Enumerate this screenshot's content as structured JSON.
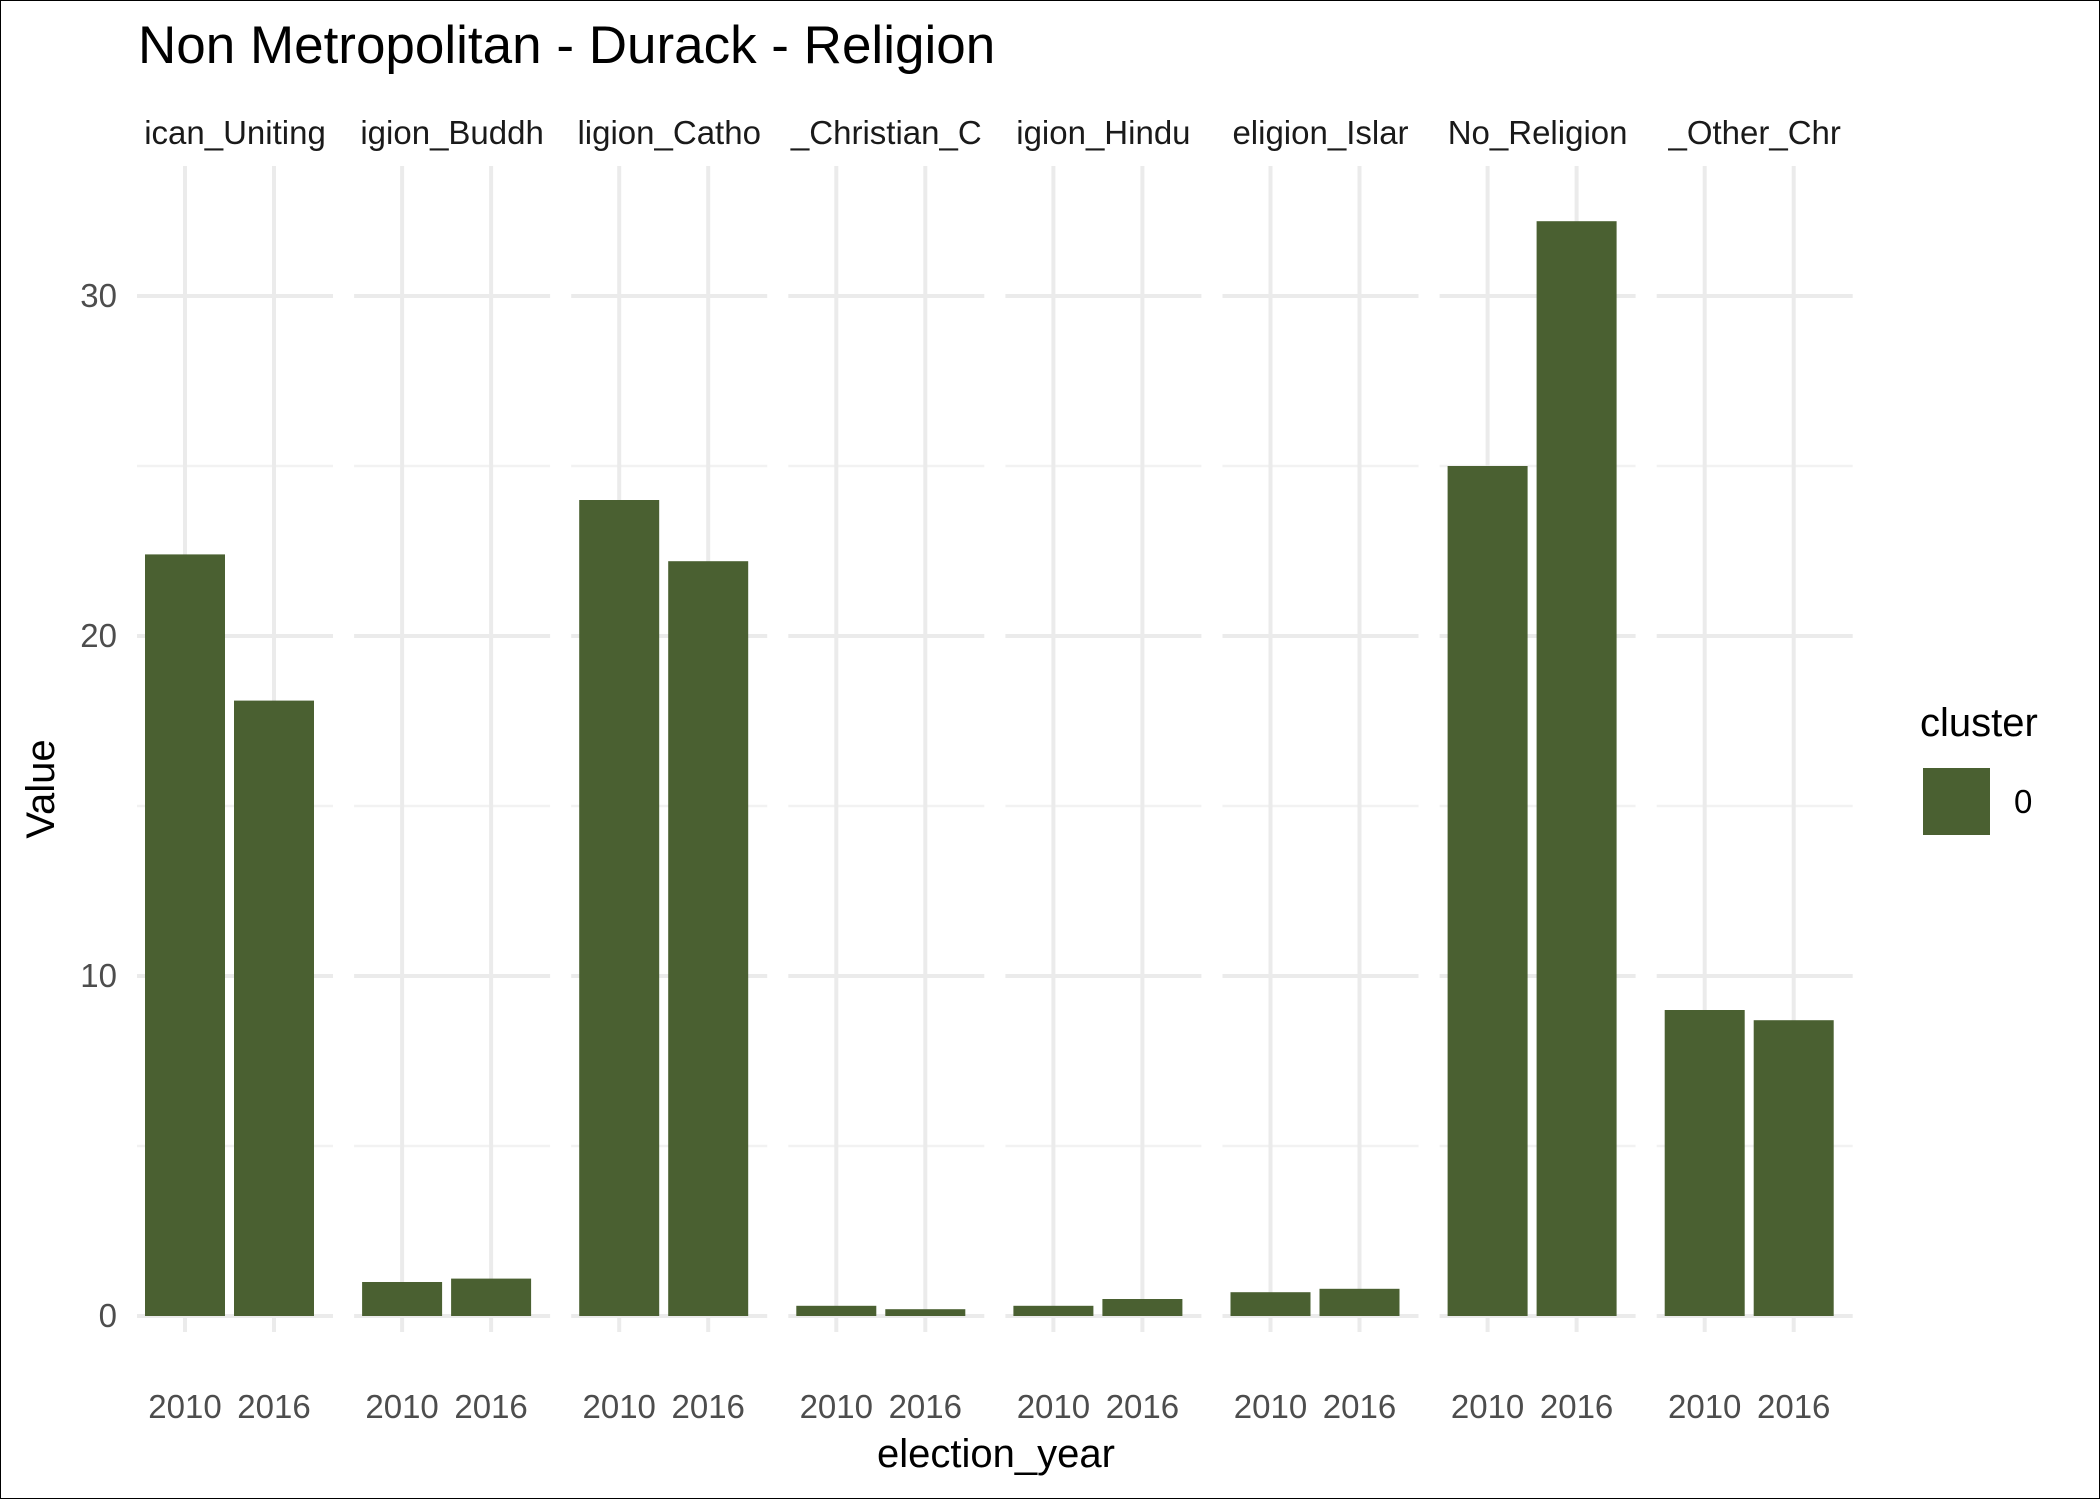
{
  "chart_data": {
    "type": "bar",
    "title": "Non Metropolitan - Durack - Religion",
    "xlabel": "election_year",
    "ylabel": "Value",
    "ylim": [
      0,
      33
    ],
    "yticks": [
      0,
      10,
      20,
      30
    ],
    "grid": true,
    "facets": [
      "Religion_Anglican_Uniting",
      "Religion_Buddhism",
      "Religion_Catholic",
      "Religion_Christian_Other",
      "Religion_Hinduism",
      "Religion_Islam",
      "Religion_No_Religion",
      "Religion_Other_Christian"
    ],
    "facet_strip_visible": [
      "ican_Uniting",
      "igion_Buddh",
      "ligion_Catho",
      "_Christian_C",
      "igion_Hindu",
      "eligion_Islar",
      "No_Religion",
      "_Other_Chr"
    ],
    "categories": [
      "2010",
      "2016"
    ],
    "series": [
      {
        "name": "0",
        "color": "#4a6031",
        "values": [
          [
            22.4,
            18.1
          ],
          [
            1.0,
            1.1
          ],
          [
            24.0,
            22.2
          ],
          [
            0.3,
            0.2
          ],
          [
            0.3,
            0.5
          ],
          [
            0.7,
            0.8
          ],
          [
            25.0,
            32.2
          ],
          [
            9.0,
            8.7
          ]
        ]
      }
    ],
    "legend": {
      "title": "cluster",
      "position": "right",
      "entries": [
        "0"
      ]
    }
  }
}
